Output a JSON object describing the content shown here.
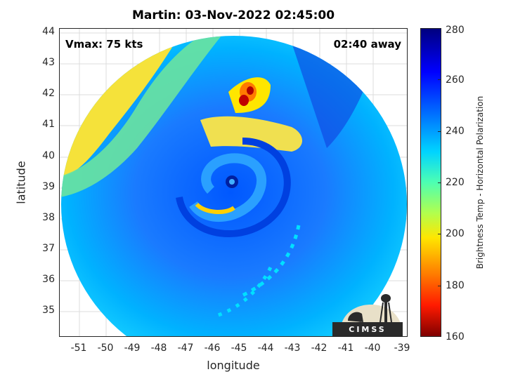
{
  "title": "Martin: 03-Nov-2022 02:45:00",
  "vmax_label": "Vmax: 75 kts",
  "time_away_label": "02:40 away",
  "xlabel": "longitude",
  "ylabel": "latitude",
  "colorbar": {
    "label": "Brightness Temp - Horizontal Polarization",
    "ticks": [
      "280",
      "260",
      "240",
      "220",
      "200",
      "180",
      "160"
    ],
    "range": [
      160,
      280
    ]
  },
  "x_ticks": [
    "-51",
    "-50",
    "-49",
    "-48",
    "-47",
    "-46",
    "-45",
    "-44",
    "-43",
    "-42",
    "-41",
    "-40",
    "-39"
  ],
  "y_ticks": [
    "44",
    "43",
    "42",
    "41",
    "40",
    "39",
    "38",
    "37",
    "36",
    "35"
  ],
  "logo_text": "CIMSS",
  "colors": {
    "cold": "#00007f",
    "mid": "#00d4ff",
    "warm": "#ffe600",
    "hot": "#7f0000"
  }
}
